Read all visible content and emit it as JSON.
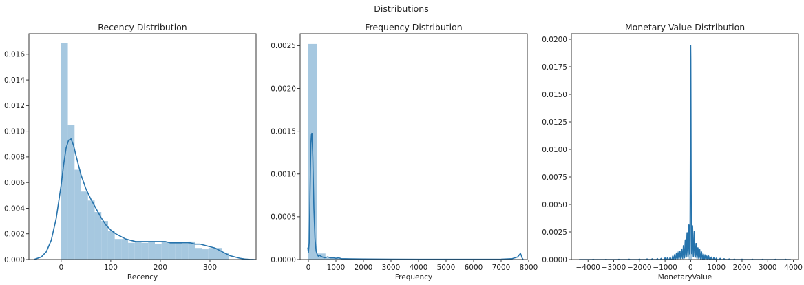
{
  "figure": {
    "suptitle": "Distributions"
  },
  "colors": {
    "bar": "#a6c8e0",
    "line": "#2673ac",
    "axis": "#222222"
  },
  "chart_data": [
    {
      "type": "bar",
      "title": "Recency Distribution",
      "xlabel": "Recency",
      "ylabel": "",
      "xlim": [
        -65,
        393
      ],
      "ylim": [
        0,
        0.0176
      ],
      "xticks": [
        0,
        100,
        200,
        300
      ],
      "yticks": [
        0.0,
        0.002,
        0.004,
        0.006,
        0.008,
        0.01,
        0.012,
        0.014,
        0.016
      ],
      "ytick_decimals": 3,
      "bins": [
        {
          "x0": 0,
          "x1": 13.5,
          "density": 0.0169
        },
        {
          "x0": 13.5,
          "x1": 27,
          "density": 0.0105
        },
        {
          "x0": 27,
          "x1": 40.5,
          "density": 0.007
        },
        {
          "x0": 40.5,
          "x1": 54,
          "density": 0.0053
        },
        {
          "x0": 54,
          "x1": 67.5,
          "density": 0.0046
        },
        {
          "x0": 67.5,
          "x1": 81,
          "density": 0.0037
        },
        {
          "x0": 81,
          "x1": 94.5,
          "density": 0.003
        },
        {
          "x0": 94.5,
          "x1": 108,
          "density": 0.0022
        },
        {
          "x0": 108,
          "x1": 121.5,
          "density": 0.0016
        },
        {
          "x0": 121.5,
          "x1": 135,
          "density": 0.0016
        },
        {
          "x0": 135,
          "x1": 148.5,
          "density": 0.0013
        },
        {
          "x0": 148.5,
          "x1": 162,
          "density": 0.0014
        },
        {
          "x0": 162,
          "x1": 175.5,
          "density": 0.0013
        },
        {
          "x0": 175.5,
          "x1": 189,
          "density": 0.0014
        },
        {
          "x0": 189,
          "x1": 202.5,
          "density": 0.0012
        },
        {
          "x0": 202.5,
          "x1": 216,
          "density": 0.0014
        },
        {
          "x0": 216,
          "x1": 229.5,
          "density": 0.0013
        },
        {
          "x0": 229.5,
          "x1": 243,
          "density": 0.0013
        },
        {
          "x0": 243,
          "x1": 256.5,
          "density": 0.0012
        },
        {
          "x0": 256.5,
          "x1": 270,
          "density": 0.0014
        },
        {
          "x0": 270,
          "x1": 283.5,
          "density": 0.0009
        },
        {
          "x0": 283.5,
          "x1": 297,
          "density": 0.0008
        },
        {
          "x0": 297,
          "x1": 310.5,
          "density": 0.0009
        },
        {
          "x0": 310.5,
          "x1": 324,
          "density": 0.0009
        },
        {
          "x0": 324,
          "x1": 337.5,
          "density": 0.0005
        }
      ],
      "kde": {
        "x": [
          -55,
          -40,
          -30,
          -20,
          -10,
          0,
          5,
          10,
          15,
          20,
          25,
          30,
          40,
          50,
          60,
          70,
          80,
          90,
          100,
          110,
          120,
          130,
          140,
          150,
          160,
          170,
          180,
          190,
          200,
          210,
          220,
          230,
          240,
          250,
          260,
          270,
          280,
          290,
          300,
          310,
          320,
          330,
          340,
          350,
          360,
          370,
          380,
          390
        ],
        "y": [
          0.0,
          0.0002,
          0.0006,
          0.0015,
          0.0032,
          0.0058,
          0.0074,
          0.0087,
          0.0093,
          0.0094,
          0.0089,
          0.0081,
          0.0066,
          0.0055,
          0.0047,
          0.004,
          0.0033,
          0.0027,
          0.0023,
          0.002,
          0.0018,
          0.0016,
          0.0015,
          0.0014,
          0.0014,
          0.0014,
          0.0014,
          0.0014,
          0.0014,
          0.0014,
          0.0013,
          0.0013,
          0.0013,
          0.0013,
          0.0013,
          0.0012,
          0.0012,
          0.0011,
          0.001,
          0.0009,
          0.0007,
          0.0005,
          0.0003,
          0.0002,
          0.0001,
          4e-05,
          1e-05,
          0.0
        ]
      }
    },
    {
      "type": "bar",
      "title": "Frequency Distribution",
      "xlabel": "Frequency",
      "ylabel": "",
      "xlim": [
        -300,
        7950
      ],
      "ylim": [
        0,
        0.00264
      ],
      "xticks": [
        0,
        1000,
        2000,
        3000,
        4000,
        5000,
        6000,
        7000,
        8000
      ],
      "yticks": [
        0.0,
        0.0005,
        0.001,
        0.0015,
        0.002,
        0.0025
      ],
      "ytick_decimals": 4,
      "bins": [
        {
          "x0": 0,
          "x1": 310,
          "density": 0.00252
        },
        {
          "x0": 310,
          "x1": 620,
          "density": 7e-05
        },
        {
          "x0": 620,
          "x1": 930,
          "density": 1.8e-05
        },
        {
          "x0": 930,
          "x1": 1240,
          "density": 1.2e-05
        },
        {
          "x0": 1240,
          "x1": 1550,
          "density": 6e-06
        },
        {
          "x0": 1550,
          "x1": 1860,
          "density": 4e-06
        },
        {
          "x0": 1860,
          "x1": 2170,
          "density": 3e-06
        },
        {
          "x0": 2170,
          "x1": 2480,
          "density": 4e-06
        },
        {
          "x0": 2480,
          "x1": 2790,
          "density": 2e-06
        },
        {
          "x0": 2790,
          "x1": 3100,
          "density": 2e-06
        },
        {
          "x0": 3100,
          "x1": 3410,
          "density": 1e-06
        },
        {
          "x0": 3410,
          "x1": 3720,
          "density": 1e-06
        },
        {
          "x0": 3720,
          "x1": 4030,
          "density": 2e-06
        },
        {
          "x0": 5000,
          "x1": 5310,
          "density": 2e-06
        },
        {
          "x0": 7440,
          "x1": 7750,
          "density": 5e-06
        }
      ],
      "kde": {
        "x": [
          -20,
          0,
          30,
          60,
          90,
          110,
          130,
          160,
          200,
          240,
          280,
          320,
          360,
          400,
          450,
          500,
          600,
          700,
          800,
          900,
          1000,
          1100,
          1200,
          1500,
          2000,
          2500,
          3000,
          4000,
          5000,
          6000,
          7000,
          7400,
          7500,
          7600,
          7650,
          7700,
          7730,
          7760,
          7800
        ],
        "y": [
          0.00014,
          8e-05,
          0.0002,
          0.0008,
          0.00135,
          0.00146,
          0.00148,
          0.0012,
          0.0006,
          0.00025,
          0.0001,
          6e-05,
          4e-05,
          5e-05,
          4e-05,
          3e-05,
          2e-05,
          3e-05,
          2e-05,
          2e-05,
          1.5e-05,
          2e-05,
          1e-05,
          8e-06,
          6e-06,
          5e-06,
          4e-06,
          3e-06,
          3e-06,
          3e-06,
          4e-06,
          1e-05,
          2e-05,
          3e-05,
          5e-05,
          7e-05,
          5e-05,
          2e-05,
          0.0
        ]
      }
    },
    {
      "type": "bar",
      "title": "Monetary Value Distribution",
      "xlabel": "MonetaryValue",
      "ylabel": "",
      "xlim": [
        -4650,
        4200
      ],
      "ylim": [
        0,
        0.0205
      ],
      "xticks": [
        -4000,
        -3000,
        -2000,
        -1000,
        0,
        1000,
        2000,
        3000,
        4000
      ],
      "yticks": [
        0.0,
        0.0025,
        0.005,
        0.0075,
        0.01,
        0.0125,
        0.015,
        0.0175,
        0.02
      ],
      "ytick_decimals": 4,
      "bins": [
        {
          "x0": -80,
          "x1": -10,
          "density": 0.0021
        },
        {
          "x0": -10,
          "x1": 60,
          "density": 0.0059
        }
      ],
      "kde": {
        "spikes": [
          {
            "x": 0,
            "h": 0.0195
          },
          {
            "x": -70,
            "h": 0.0032
          },
          {
            "x": 70,
            "h": 0.0031
          },
          {
            "x": -140,
            "h": 0.0025
          },
          {
            "x": 140,
            "h": 0.0026
          },
          {
            "x": -210,
            "h": 0.0018
          },
          {
            "x": 210,
            "h": 0.0015
          },
          {
            "x": -280,
            "h": 0.0013
          },
          {
            "x": 280,
            "h": 0.0011
          },
          {
            "x": -350,
            "h": 0.001
          },
          {
            "x": 350,
            "h": 0.0009
          },
          {
            "x": -420,
            "h": 0.0008
          },
          {
            "x": 420,
            "h": 0.0007
          },
          {
            "x": -490,
            "h": 0.0006
          },
          {
            "x": 490,
            "h": 0.0005
          },
          {
            "x": -560,
            "h": 0.0005
          },
          {
            "x": 560,
            "h": 0.0004
          },
          {
            "x": -630,
            "h": 0.0004
          },
          {
            "x": 630,
            "h": 0.0003
          },
          {
            "x": -700,
            "h": 0.0003
          },
          {
            "x": 700,
            "h": 0.0003
          },
          {
            "x": -800,
            "h": 0.0002
          },
          {
            "x": 800,
            "h": 0.0002
          },
          {
            "x": -900,
            "h": 0.00018
          },
          {
            "x": 900,
            "h": 0.00016
          },
          {
            "x": -1000,
            "h": 0.00014
          },
          {
            "x": 1000,
            "h": 0.00012
          },
          {
            "x": -1150,
            "h": 0.0001
          },
          {
            "x": 1150,
            "h": 0.0001
          },
          {
            "x": -1300,
            "h": 8e-05
          },
          {
            "x": 1300,
            "h": 7e-05
          },
          {
            "x": -1500,
            "h": 6e-05
          },
          {
            "x": 1500,
            "h": 5e-05
          },
          {
            "x": -1700,
            "h": 5e-05
          },
          {
            "x": 1700,
            "h": 4e-05
          },
          {
            "x": -2000,
            "h": 4e-05
          },
          {
            "x": 2000,
            "h": 3e-05
          },
          {
            "x": -2400,
            "h": 3e-05
          },
          {
            "x": 2400,
            "h": 3e-05
          },
          {
            "x": -2800,
            "h": 2e-05
          },
          {
            "x": 2800,
            "h": 2e-05
          },
          {
            "x": -3300,
            "h": 2e-05
          },
          {
            "x": 3300,
            "h": 2e-05
          },
          {
            "x": -3800,
            "h": 2e-05
          },
          {
            "x": 3700,
            "h": 2e-05
          }
        ],
        "x_range": [
          -4350,
          3900
        ]
      }
    }
  ]
}
